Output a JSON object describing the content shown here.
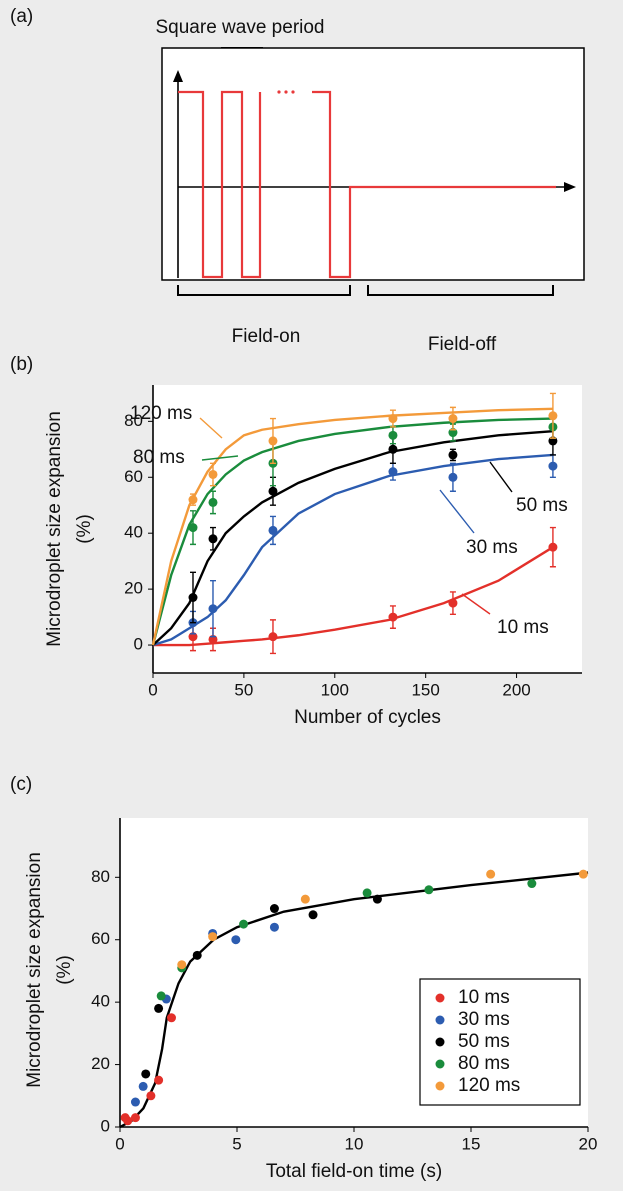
{
  "panel_a": {
    "label": "(a)",
    "period_label": "Square wave period",
    "field_on": "Field-on",
    "field_off": "Field-off"
  },
  "chart_data": [
    {
      "type": "scatter",
      "panel_label": "(b)",
      "xlabel": "Number of cycles",
      "ylabel": [
        "Microdroplet size expansion",
        "(%)"
      ],
      "x": [
        22,
        33,
        66,
        132,
        165,
        220
      ],
      "xlim": [
        0,
        236
      ],
      "xticks": [
        0,
        50,
        100,
        150,
        200
      ],
      "ylim": [
        -10,
        93
      ],
      "yticks": [
        0,
        20,
        40,
        60,
        80
      ],
      "series": [
        {
          "name": "10 ms",
          "color": "#e3302a",
          "values": [
            3,
            2,
            3,
            10,
            15,
            35
          ],
          "errors": [
            5,
            4,
            6,
            4,
            4,
            7
          ],
          "fit": {
            "x": [
              0,
              10,
              20,
              30,
              40,
              50,
              60,
              80,
              100,
              130,
              160,
              190,
              220
            ],
            "values": [
              0,
              0,
              0,
              0.5,
              1,
              1.5,
              2,
              3.5,
              5.5,
              9,
              15,
              23,
              35
            ]
          }
        },
        {
          "name": "30 ms",
          "color": "#2c5cb0",
          "values": [
            8,
            13,
            41,
            62,
            60,
            64
          ],
          "errors": [
            4,
            10,
            5,
            3,
            5,
            4
          ],
          "fit": {
            "x": [
              0,
              10,
              20,
              30,
              40,
              50,
              60,
              80,
              100,
              130,
              160,
              190,
              220
            ],
            "values": [
              0,
              2,
              6,
              10,
              16,
              25,
              35,
              47,
              54,
              60.5,
              64,
              66.5,
              68
            ]
          }
        },
        {
          "name": "50 ms",
          "color": "#000000",
          "values": [
            17,
            38,
            55,
            70,
            68,
            73
          ],
          "errors": [
            9,
            4,
            5,
            5,
            2,
            5
          ],
          "fit": {
            "x": [
              0,
              10,
              20,
              30,
              40,
              50,
              60,
              80,
              100,
              130,
              160,
              190,
              220
            ],
            "values": [
              0,
              6,
              15,
              30,
              40,
              46,
              51,
              58,
              63,
              69,
              72.5,
              75,
              76.5
            ]
          }
        },
        {
          "name": "80 ms",
          "color": "#1a8c3c",
          "values": [
            42,
            51,
            65,
            75,
            76,
            78
          ],
          "errors": [
            6,
            4,
            8,
            3,
            3,
            4
          ],
          "fit": {
            "x": [
              0,
              10,
              20,
              30,
              40,
              50,
              60,
              80,
              100,
              130,
              160,
              190,
              220
            ],
            "values": [
              0,
              25,
              43,
              54,
              61,
              66,
              69,
              73,
              75.5,
              78,
              79.5,
              80.5,
              81
            ]
          }
        },
        {
          "name": "120 ms",
          "color": "#f39a3a",
          "values": [
            52,
            61,
            73,
            81,
            81,
            82
          ],
          "errors": [
            2,
            4,
            8,
            3,
            4,
            8
          ],
          "fit": {
            "x": [
              0,
              10,
              20,
              30,
              40,
              50,
              60,
              80,
              100,
              130,
              160,
              190,
              220
            ],
            "values": [
              0,
              30,
              50,
              62,
              70,
              75,
              77,
              79,
              80.5,
              82,
              83,
              84,
              84.5
            ]
          }
        }
      ]
    },
    {
      "type": "scatter",
      "panel_label": "(c)",
      "xlabel": "Total field-on time (s)",
      "ylabel": [
        "Microdroplet size expansion",
        "(%)"
      ],
      "xlim": [
        0,
        20
      ],
      "xticks": [
        0,
        5,
        10,
        15,
        20
      ],
      "ylim": [
        0,
        99
      ],
      "yticks": [
        0,
        20,
        40,
        60,
        80
      ],
      "legend": "lower right",
      "series": [
        {
          "name": "10 ms",
          "color": "#e3302a",
          "x": [
            0.22,
            0.33,
            0.66,
            1.32,
            1.65,
            2.2
          ],
          "values": [
            3,
            2,
            3,
            10,
            15,
            35
          ]
        },
        {
          "name": "30 ms",
          "color": "#2c5cb0",
          "x": [
            0.66,
            0.99,
            1.98,
            3.96,
            4.95,
            6.6
          ],
          "values": [
            8,
            13,
            41,
            62,
            60,
            64
          ]
        },
        {
          "name": "50 ms",
          "color": "#000000",
          "x": [
            1.1,
            1.65,
            3.3,
            6.6,
            8.25,
            11
          ],
          "values": [
            17,
            38,
            55,
            70,
            68,
            73
          ]
        },
        {
          "name": "80 ms",
          "color": "#1a8c3c",
          "x": [
            1.76,
            2.64,
            5.28,
            10.56,
            13.2,
            17.6
          ],
          "values": [
            42,
            51,
            65,
            75,
            76,
            78
          ]
        },
        {
          "name": "120 ms",
          "color": "#f39a3a",
          "x": [
            2.64,
            3.96,
            7.92,
            15.84,
            19.8
          ],
          "values": [
            52,
            61,
            73,
            81,
            81
          ]
        }
      ],
      "fit": {
        "color": "#000000",
        "x": [
          0,
          0.5,
          1,
          1.5,
          1.8,
          2,
          2.5,
          3,
          4,
          5,
          7,
          10,
          15,
          20
        ],
        "values": [
          0,
          2,
          6,
          14,
          25,
          35,
          46,
          53,
          60,
          64,
          69,
          73,
          77.5,
          81.5
        ]
      }
    }
  ]
}
